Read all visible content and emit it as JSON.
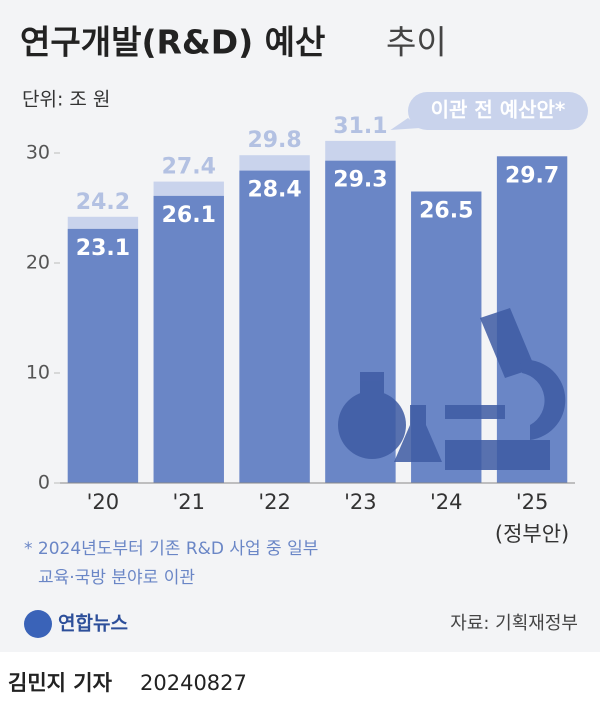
{
  "chart_data": {
    "type": "bar",
    "title": "연구개발(R&D) 예산",
    "title_suffix": "추이",
    "subtitle": "단위: 조 원",
    "categories": [
      "'20",
      "'21",
      "'22",
      "'23",
      "'24",
      "'25"
    ],
    "category_note": "(정부안)",
    "series": [
      {
        "color": "#6a86c6",
        "values": [
          23.1,
          26.1,
          28.4,
          29.3,
          26.5,
          29.7
        ]
      },
      {
        "name": "이관 전 예산안*",
        "color": "#c9d3ec",
        "values": [
          24.2,
          27.4,
          29.8,
          31.1,
          null,
          null
        ]
      }
    ],
    "ylim": [
      0,
      30
    ],
    "yticks": [
      0,
      10,
      20,
      30
    ],
    "footnote": [
      "* 2024년도부터 기존 R&D 사업 중 일부",
      "교육·국방 분야로 이관"
    ],
    "source": "자료: 기획재정부",
    "logo": "연합뉴스",
    "byline": "김민지 기자",
    "date": "20240827"
  }
}
